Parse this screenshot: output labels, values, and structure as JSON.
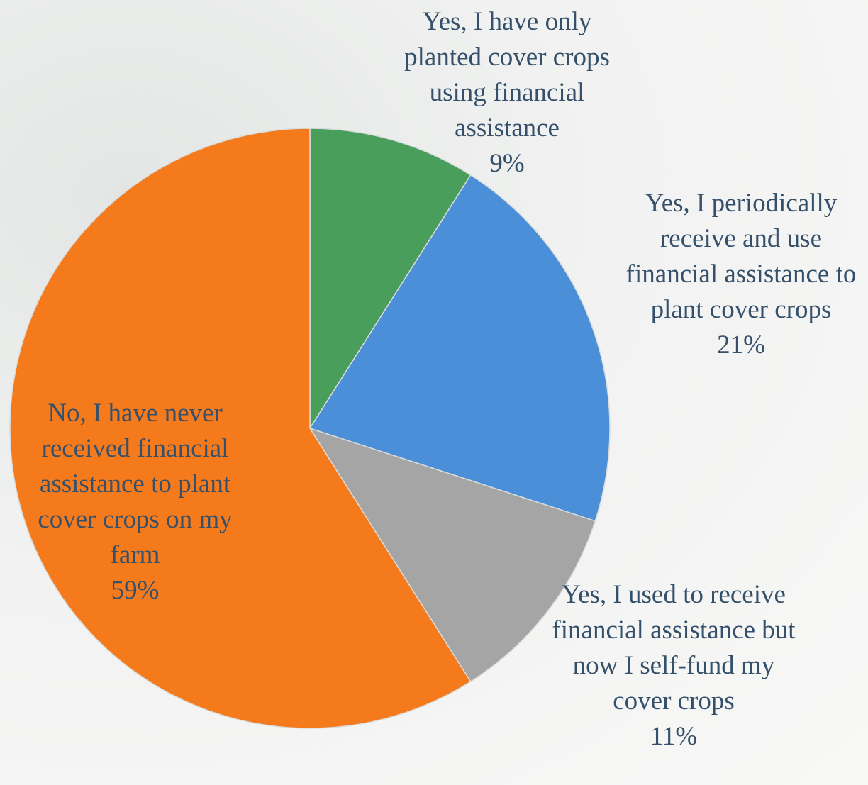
{
  "chart_data": {
    "type": "pie",
    "categories": [
      "Yes, I have only planted cover crops using financial assistance",
      "Yes, I periodically receive and use financial assistance to plant cover crops",
      "Yes, I used to receive financial assistance but now I self-fund my cover crops",
      "No, I have never received financial assistance to plant cover crops on my farm"
    ],
    "values": [
      9,
      21,
      11,
      59
    ],
    "value_labels": [
      "9%",
      "21%",
      "11%",
      "59%"
    ],
    "colors": [
      "#4a9e5c",
      "#4a8fd8",
      "#a5a5a5",
      "#f47a1c"
    ]
  }
}
